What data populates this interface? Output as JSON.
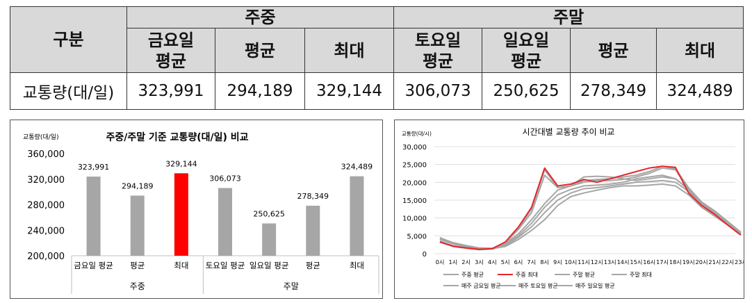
{
  "table": {
    "header_gubun": "구분",
    "group_weekday": "주중",
    "group_weekend": "주말",
    "cols": [
      {
        "line1": "금요일",
        "line2": "평균"
      },
      {
        "line1": "평균",
        "line2": ""
      },
      {
        "line1": "최대",
        "line2": ""
      },
      {
        "line1": "토요일",
        "line2": "평균"
      },
      {
        "line1": "일요일",
        "line2": "평균"
      },
      {
        "line1": "평균",
        "line2": ""
      },
      {
        "line1": "최대",
        "line2": ""
      }
    ],
    "row_label": "교통량(대/일)",
    "values": [
      "323,991",
      "294,189",
      "329,144",
      "306,073",
      "250,625",
      "278,349",
      "324,489"
    ]
  },
  "chart_data": [
    {
      "type": "bar",
      "title": "주중/주말 기준 교통량(대/일) 비교",
      "ylabel": "교통량(대/일)",
      "ylim": [
        200000,
        360000
      ],
      "yticks": [
        "200,000",
        "240,000",
        "280,000",
        "320,000",
        "360,000"
      ],
      "categories": [
        "금요일 평균",
        "평균",
        "최대",
        "토요일 평균",
        "일요일 평균",
        "평균",
        "최대"
      ],
      "groups": [
        {
          "label": "주중",
          "count": 3
        },
        {
          "label": "주말",
          "count": 4
        }
      ],
      "values": [
        323991,
        294189,
        329144,
        306073,
        250625,
        278349,
        324489
      ],
      "value_labels": [
        "323,991",
        "294,189",
        "329,144",
        "306,073",
        "250,625",
        "278,349",
        "324,489"
      ],
      "colors": [
        "#a6a6a6",
        "#a6a6a6",
        "#ff0000",
        "#a6a6a6",
        "#a6a6a6",
        "#a6a6a6",
        "#a6a6a6"
      ]
    },
    {
      "type": "line",
      "title": "시간대별 교통량 추이 비교",
      "ylabel": "교통량(대/시)",
      "ylim": [
        0,
        30000
      ],
      "yticks": [
        "0",
        "5,000",
        "10,000",
        "15,000",
        "20,000",
        "25,000",
        "30,000"
      ],
      "x": [
        "0시",
        "1시",
        "2시",
        "3시",
        "4시",
        "5시",
        "6시",
        "7시",
        "8시",
        "9시",
        "10시",
        "11시",
        "12시",
        "13시",
        "14시",
        "15시",
        "16시",
        "17시",
        "18시",
        "19시",
        "20시",
        "21시",
        "22시",
        "23시"
      ],
      "series": [
        {
          "name": "주중 평균",
          "color": "#a6a6a6",
          "values": [
            3200,
            2000,
            1500,
            1100,
            1300,
            3000,
            6800,
            11500,
            22000,
            18500,
            19000,
            20000,
            20500,
            20500,
            20800,
            21500,
            22500,
            24000,
            23500,
            18000,
            14000,
            11500,
            8500,
            5500
          ]
        },
        {
          "name": "주중 최대",
          "color": "#e8262a",
          "values": [
            3300,
            2100,
            1600,
            1200,
            1400,
            3300,
            7500,
            13000,
            24000,
            19000,
            19500,
            20800,
            20000,
            21000,
            22000,
            23000,
            24000,
            24500,
            24200,
            17000,
            13500,
            11000,
            8000,
            5200
          ]
        },
        {
          "name": "주말 평균",
          "color": "#a6a6a6",
          "values": [
            4000,
            2700,
            2000,
            1400,
            1300,
            2200,
            4600,
            7500,
            11500,
            15000,
            17000,
            18200,
            18500,
            19000,
            19500,
            20000,
            20200,
            20500,
            20000,
            17500,
            14000,
            11500,
            8500,
            5800
          ]
        },
        {
          "name": "주말 최대",
          "color": "#a6a6a6",
          "values": [
            4500,
            3000,
            2200,
            1600,
            1500,
            2800,
            5600,
            9500,
            14000,
            17800,
            19000,
            21500,
            21700,
            21500,
            21000,
            20500,
            21000,
            21500,
            21000,
            18000,
            14000,
            11000,
            8000,
            5500
          ]
        },
        {
          "name": "매주 금요일 평균",
          "color": "#a6a6a6",
          "values": [
            3500,
            2200,
            1700,
            1200,
            1400,
            3200,
            7000,
            12500,
            23500,
            18500,
            19000,
            20500,
            20800,
            21000,
            21500,
            22000,
            23000,
            24500,
            23800,
            18500,
            14500,
            12000,
            9000,
            6000
          ]
        },
        {
          "name": "매주 토요일 평균",
          "color": "#a6a6a6",
          "values": [
            4200,
            2900,
            2100,
            1500,
            1400,
            2500,
            5000,
            8500,
            13000,
            16500,
            18000,
            19000,
            19200,
            19500,
            20000,
            21000,
            21500,
            22000,
            21000,
            18000,
            14500,
            11500,
            8500,
            5800
          ]
        },
        {
          "name": "매주 일요일 평균",
          "color": "#a6a6a6",
          "values": [
            4400,
            3100,
            2300,
            1600,
            1400,
            2000,
            4000,
            6500,
            9500,
            13500,
            16000,
            17000,
            17800,
            18500,
            19000,
            19000,
            19200,
            19500,
            19000,
            16500,
            13000,
            10500,
            8000,
            5500
          ]
        }
      ]
    }
  ]
}
